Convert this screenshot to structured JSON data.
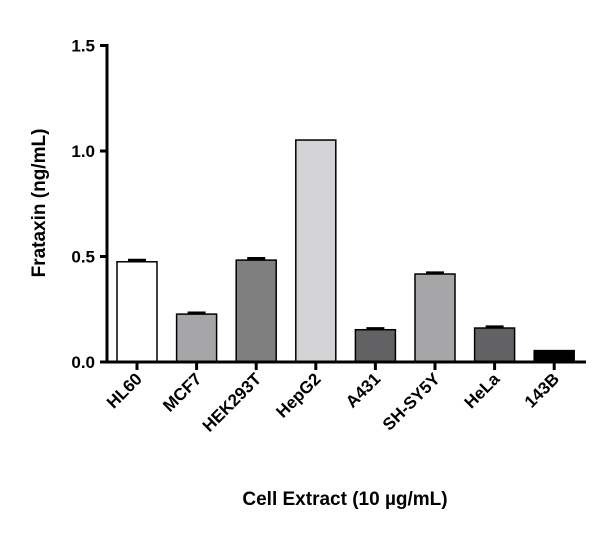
{
  "chart_data": {
    "type": "bar",
    "title": "",
    "xlabel": "Cell Extract (10 µg/mL)",
    "ylabel": "Frataxin (ng/mL)",
    "ylim": [
      0,
      1.5
    ],
    "yticks": [
      "0.0",
      "0.5",
      "1.0",
      "1.5"
    ],
    "categories": [
      "HL60",
      "MCF7",
      "HEK293T",
      "HepG2",
      "A431",
      "SH-SY5Y",
      "HeLa",
      "143B"
    ],
    "values": [
      0.475,
      0.227,
      0.483,
      1.052,
      0.153,
      0.417,
      0.161,
      0.054
    ],
    "errors": [
      0.012,
      0.01,
      0.012,
      0,
      0.01,
      0.01,
      0.01,
      0
    ],
    "colors": [
      "#ffffff",
      "#a6a6a8",
      "#7f7f80",
      "#d4d4d6",
      "#626264",
      "#a6a6a8",
      "#626264",
      "#000000"
    ],
    "grid": false
  }
}
